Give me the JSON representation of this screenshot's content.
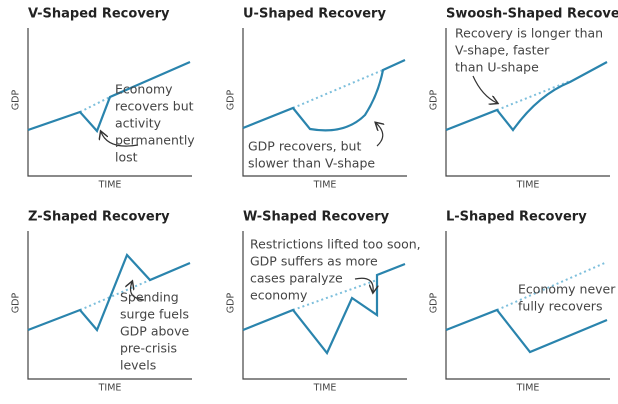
{
  "panels": [
    {
      "title": "V-Shaped Recovery",
      "ylabel": "GDP",
      "xlabel": "TIME",
      "annotation": [
        "Economy",
        "recovers but",
        "activity",
        "permanently",
        "lost"
      ]
    },
    {
      "title": "U-Shaped Recovery",
      "ylabel": "GDP",
      "xlabel": "TIME",
      "annotation": [
        "GDP recovers, but",
        "slower than V-shape"
      ]
    },
    {
      "title": "Swoosh-Shaped Recovery",
      "ylabel": "GDP",
      "xlabel": "TIME",
      "annotation": [
        "Recovery is longer than",
        "V-shape, faster",
        "than U-shape"
      ]
    },
    {
      "title": "Z-Shaped Recovery",
      "ylabel": "GDP",
      "xlabel": "TIME",
      "annotation": [
        "Spending",
        "surge fuels",
        "GDP above",
        "pre-crisis",
        "levels"
      ]
    },
    {
      "title": "W-Shaped Recovery",
      "ylabel": "GDP",
      "xlabel": "TIME",
      "annotation": [
        "Restrictions lifted too soon,",
        "GDP suffers as more",
        "cases paralyze",
        "economy"
      ]
    },
    {
      "title": "L-Shaped Recovery",
      "ylabel": "GDP",
      "xlabel": "TIME",
      "annotation": [
        "Economy never",
        "fully recovers"
      ]
    }
  ]
}
